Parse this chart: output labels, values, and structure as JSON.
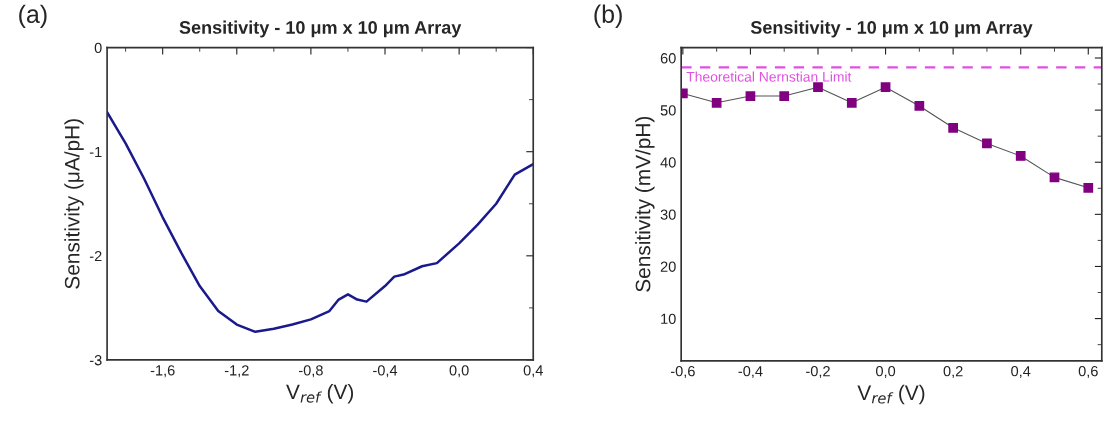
{
  "chart_data": [
    {
      "type": "line",
      "title": "Sensitivity - 10 μm x 10 μm Array",
      "xlabel": "V$_{ref}$ (V)",
      "ylabel": "Sensitivity (μA/pH)",
      "annotations": [
        "(a)"
      ],
      "x": [
        -1.9,
        -1.8,
        -1.7,
        -1.6,
        -1.5,
        -1.4,
        -1.3,
        -1.2,
        -1.1,
        -1.0,
        -0.9,
        -0.8,
        -0.7,
        -0.65,
        -0.6,
        -0.55,
        -0.5,
        -0.4,
        -0.35,
        -0.3,
        -0.2,
        -0.12,
        0.0,
        0.1,
        0.2,
        0.3,
        0.4
      ],
      "series": [
        {
          "color": "#1a1a8c",
          "values": [
            -0.62,
            -0.92,
            -1.26,
            -1.63,
            -1.97,
            -2.29,
            -2.53,
            -2.66,
            -2.73,
            -2.7,
            -2.66,
            -2.61,
            -2.53,
            -2.42,
            -2.37,
            -2.42,
            -2.44,
            -2.29,
            -2.2,
            -2.18,
            -2.1,
            -2.07,
            -1.88,
            -1.7,
            -1.5,
            -1.22,
            -1.12
          ]
        }
      ],
      "xlim": [
        -1.9,
        0.4
      ],
      "ylim": [
        -3,
        0
      ],
      "xticks": [
        {
          "value": -1.6,
          "label": "-1,6"
        },
        {
          "value": -1.2,
          "label": "-1,2"
        },
        {
          "value": -0.8,
          "label": "-0,8"
        },
        {
          "value": -0.4,
          "label": "-0,4"
        },
        {
          "value": 0.0,
          "label": "0,0"
        },
        {
          "value": 0.4,
          "label": "0,4"
        }
      ],
      "yticks": [
        {
          "value": -3,
          "label": "-3"
        },
        {
          "value": -2,
          "label": "-2"
        },
        {
          "value": -1,
          "label": "-1"
        },
        0
      ],
      "marker": "none",
      "line_style": "solid",
      "grid": false,
      "legend": false
    },
    {
      "type": "line",
      "title": "Sensitivity - 10 μm x 10 μm Array",
      "xlabel": "V$_{ref}$ (V)",
      "ylabel": "Sensitivity (mV/pH)",
      "annotations": [
        "(b)"
      ],
      "x": [
        -0.6,
        -0.5,
        -0.4,
        -0.3,
        -0.2,
        -0.1,
        0.0,
        0.1,
        0.2,
        0.3,
        0.4,
        0.5,
        0.6
      ],
      "series": [
        {
          "color": "#800080",
          "values": [
            53.2,
            51.4,
            52.7,
            52.7,
            54.4,
            51.4,
            54.4,
            50.8,
            46.6,
            43.6,
            41.2,
            37.1,
            35.1
          ]
        }
      ],
      "xlim": [
        -0.605,
        0.64
      ],
      "ylim": [
        1.9,
        62
      ],
      "xticks": [
        {
          "value": -0.6,
          "label": "-0,6"
        },
        {
          "value": -0.4,
          "label": "-0,4"
        },
        {
          "value": -0.2,
          "label": "-0,2"
        },
        {
          "value": 0.0,
          "label": "0,0"
        },
        {
          "value": 0.2,
          "label": "0,2"
        },
        {
          "value": 0.4,
          "label": "0,4"
        },
        {
          "value": 0.6,
          "label": "0,6"
        }
      ],
      "yticks": [
        10,
        20,
        30,
        40,
        50,
        60
      ],
      "ref_lines": [
        {
          "axis": "y",
          "value": 58.2,
          "label": "Theoretical Nernstian Limit",
          "color": "#e050e0",
          "line_style": "dashed"
        }
      ],
      "marker": "square",
      "line_style": "solid",
      "grid": false,
      "legend": false
    }
  ]
}
